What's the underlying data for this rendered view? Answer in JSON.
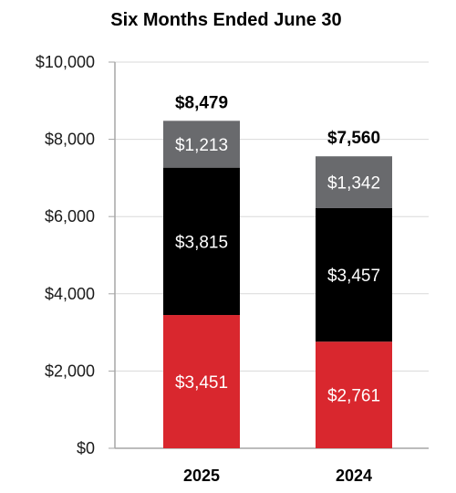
{
  "chart_data": {
    "type": "bar",
    "stacked": true,
    "title": "Six Months Ended June 30",
    "categories": [
      "2025",
      "2024"
    ],
    "series": [
      {
        "values": [
          3451,
          2761
        ],
        "labels": [
          "$3,451",
          "$2,761"
        ],
        "color": "#d9272e"
      },
      {
        "values": [
          3815,
          3457
        ],
        "labels": [
          "$3,815",
          "$3,457"
        ],
        "color": "#000000"
      },
      {
        "values": [
          1213,
          1342
        ],
        "labels": [
          "$1,213",
          "$1,342"
        ],
        "color": "#696a6d"
      }
    ],
    "totals": [
      8479,
      7560
    ],
    "total_labels": [
      "$8,479",
      "$7,560"
    ],
    "ylim": [
      0,
      10000
    ],
    "yticks": [
      {
        "value": 0,
        "label": "$0"
      },
      {
        "value": 2000,
        "label": "$2,000"
      },
      {
        "value": 4000,
        "label": "$4,000"
      },
      {
        "value": 6000,
        "label": "$6,000"
      },
      {
        "value": 8000,
        "label": "$8,000"
      },
      {
        "value": 10000,
        "label": "$10,000"
      }
    ],
    "grid": true,
    "xlabel": "",
    "ylabel": ""
  }
}
